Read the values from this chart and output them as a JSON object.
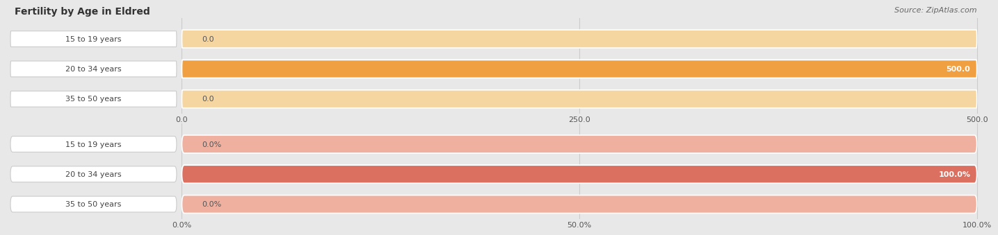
{
  "title": "Fertility by Age in Eldred",
  "source": "Source: ZipAtlas.com",
  "background_color": "#e8e8e8",
  "top_chart": {
    "categories": [
      "15 to 19 years",
      "20 to 34 years",
      "35 to 50 years"
    ],
    "values": [
      0.0,
      500.0,
      0.0
    ],
    "max_val": 500.0,
    "bar_color_full": "#f0a040",
    "bar_color_empty": "#f5d5a0",
    "value_labels": [
      "0.0",
      "500.0",
      "0.0"
    ],
    "xticks": [
      0.0,
      250.0,
      500.0
    ],
    "xtick_labels": [
      "0.0",
      "250.0",
      "500.0"
    ]
  },
  "bottom_chart": {
    "categories": [
      "15 to 19 years",
      "20 to 34 years",
      "35 to 50 years"
    ],
    "values": [
      0.0,
      100.0,
      0.0
    ],
    "max_val": 100.0,
    "bar_color_full": "#dc7060",
    "bar_color_empty": "#f0b0a0",
    "value_labels": [
      "0.0%",
      "100.0%",
      "0.0%"
    ],
    "xticks": [
      0.0,
      50.0,
      100.0
    ],
    "xtick_labels": [
      "0.0%",
      "50.0%",
      "100.0%"
    ]
  }
}
